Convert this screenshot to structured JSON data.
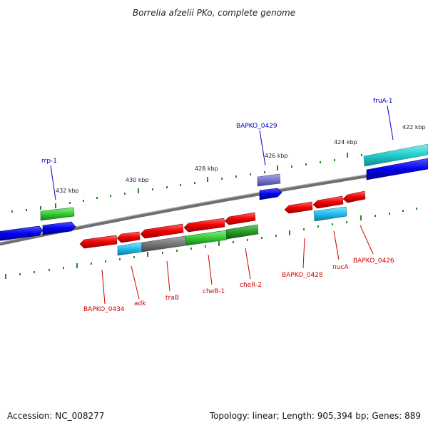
{
  "title": "Borrelia afzelii PKo, complete genome",
  "footer": {
    "accession": "Accession: NC_008277",
    "summary": "Topology: linear; Length: 905,394 bp; Genes: 889"
  },
  "colors": {
    "background": "#ffffff",
    "backbone": "#7f7f7f",
    "tick": "#1f8a1f",
    "gene_forward": "#0000ee",
    "gene_reverse": "#dd0000",
    "cds_green": "#33cc33",
    "cds_cyan": "#22bbdd",
    "cds_gray": "#777777",
    "cds_purple": "#7777cc",
    "cds_teal": "#22cccc",
    "label_blue": "#0000cc",
    "label_red": "#cc0000"
  },
  "scale_labels": [
    "432 kbp",
    "430 kbp",
    "428 kbp",
    "426 kbp",
    "424 kbp",
    "422 kbp"
  ],
  "gene_labels": {
    "blue": [
      "rrp-1",
      "BAPKO_0429",
      "fruA-1"
    ],
    "red": [
      "BAPKO_0434",
      "adk",
      "traB",
      "cheB-1",
      "cheR-2",
      "BAPKO_0428",
      "nucA",
      "BAPKO_0426"
    ]
  }
}
